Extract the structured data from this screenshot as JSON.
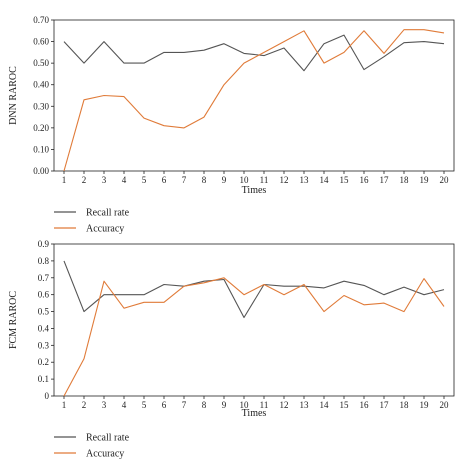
{
  "colors": {
    "recall": "#555555",
    "accuracy": "#e07b39",
    "axis": "#222222"
  },
  "chart_data": [
    {
      "type": "line",
      "xlabel": "Times",
      "ylabel": "DNN RAROC",
      "x": [
        1,
        2,
        3,
        4,
        5,
        6,
        7,
        8,
        9,
        10,
        11,
        12,
        13,
        14,
        15,
        16,
        17,
        18,
        19,
        20
      ],
      "ylim": [
        0,
        0.7
      ],
      "yticks": [
        "0.00",
        "0.10",
        "0.20",
        "0.30",
        "0.40",
        "0.50",
        "0.60",
        "0.70"
      ],
      "grid": false,
      "legend_position": "bottom-left",
      "series": [
        {
          "name": "Recall rate",
          "values": [
            0.6,
            0.5,
            0.6,
            0.5,
            0.5,
            0.55,
            0.55,
            0.56,
            0.59,
            0.545,
            0.535,
            0.57,
            0.465,
            0.59,
            0.63,
            0.47,
            0.53,
            0.595,
            0.6,
            0.59
          ]
        },
        {
          "name": "Accuracy",
          "values": [
            0.0,
            0.33,
            0.35,
            0.345,
            0.245,
            0.21,
            0.2,
            0.25,
            0.4,
            0.5,
            0.55,
            0.6,
            0.65,
            0.5,
            0.55,
            0.65,
            0.545,
            0.655,
            0.655,
            0.64
          ]
        }
      ]
    },
    {
      "type": "line",
      "xlabel": "Times",
      "ylabel": "FCM RAROC",
      "x": [
        1,
        2,
        3,
        4,
        5,
        6,
        7,
        8,
        9,
        10,
        11,
        12,
        13,
        14,
        15,
        16,
        17,
        18,
        19,
        20
      ],
      "ylim": [
        0,
        0.9
      ],
      "yticks": [
        "0",
        "0.1",
        "0.2",
        "0.3",
        "0.4",
        "0.5",
        "0.6",
        "0.7",
        "0.8",
        "0.9"
      ],
      "grid": false,
      "legend_position": "bottom-left",
      "series": [
        {
          "name": "Recall rate",
          "values": [
            0.8,
            0.5,
            0.6,
            0.6,
            0.6,
            0.66,
            0.65,
            0.68,
            0.69,
            0.465,
            0.66,
            0.65,
            0.65,
            0.64,
            0.68,
            0.655,
            0.6,
            0.645,
            0.6,
            0.63
          ]
        },
        {
          "name": "Accuracy",
          "values": [
            0.0,
            0.22,
            0.68,
            0.52,
            0.555,
            0.555,
            0.65,
            0.67,
            0.7,
            0.6,
            0.66,
            0.6,
            0.66,
            0.5,
            0.595,
            0.54,
            0.55,
            0.5,
            0.695,
            0.53
          ]
        }
      ]
    }
  ]
}
